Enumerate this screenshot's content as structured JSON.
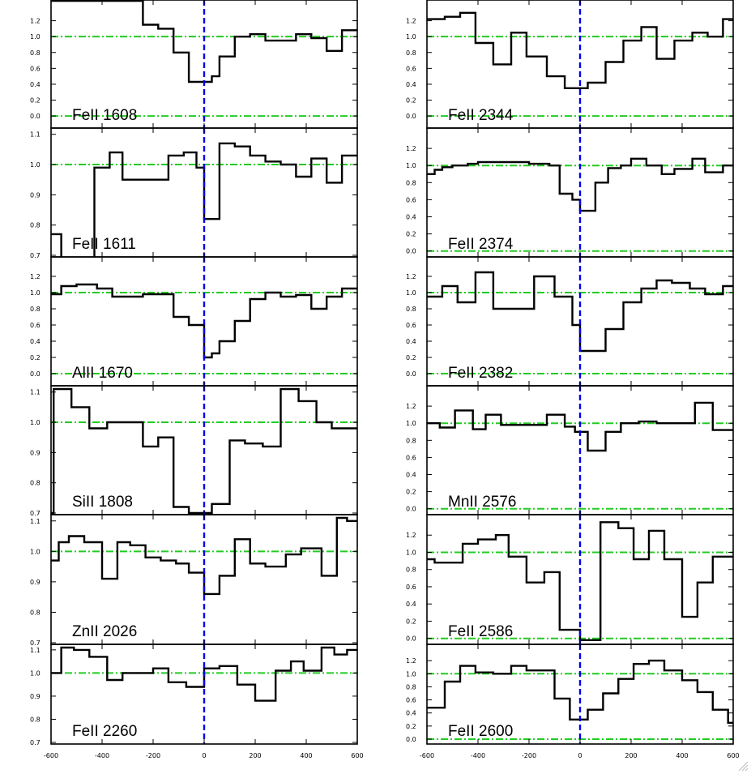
{
  "chart_data": {
    "type": "line",
    "layout": "two columns of six stacked step-histogram panels, shared x axis per column",
    "x_range": [
      -600,
      600
    ],
    "x_tick_labels": [
      "-600",
      "-400",
      "-200",
      "0",
      "200",
      "400",
      "600"
    ],
    "x_ticks": [
      -600,
      -400,
      -200,
      0,
      200,
      400,
      600
    ],
    "reference_lines": {
      "continuum_y": 1.0,
      "zero_y": 0.0,
      "continuum_style": "green dash-dot",
      "velocity_zero_x": 0,
      "velocity_zero_style": "blue dashed"
    },
    "colors": {
      "spectrum": "#000000",
      "continuum": "#22cc22",
      "velocity_zero": "#0000ee",
      "frame": "#000000"
    },
    "grid": false,
    "panels": [
      {
        "label": "FeII 1608",
        "column": "left",
        "row": 0,
        "ylim": [
          -0.05,
          1.4
        ],
        "ytick_labels": [
          "0.0",
          "0.2",
          "0.4",
          "0.6",
          "0.8",
          "1.0",
          "1.2"
        ],
        "yticks": [
          0,
          0.2,
          0.4,
          0.6,
          0.8,
          1.0,
          1.2
        ],
        "step_x": [
          -600,
          -540,
          -480,
          -420,
          -360,
          -300,
          -240,
          -180,
          -120,
          -60,
          0,
          30,
          60,
          120,
          180,
          240,
          300,
          360,
          420,
          480,
          540,
          600
        ],
        "values": [
          1.45,
          1.45,
          1.45,
          1.45,
          1.45,
          1.45,
          1.15,
          1.1,
          0.8,
          0.43,
          0.43,
          0.5,
          0.75,
          1.0,
          1.03,
          0.95,
          0.95,
          1.03,
          0.98,
          0.82,
          1.08
        ]
      },
      {
        "label": "FeII 1611",
        "column": "left",
        "row": 1,
        "ylim": [
          0.7,
          1.11
        ],
        "ytick_labels": [
          "0.7",
          "0.8",
          "0.9",
          "1.0",
          "1.1"
        ],
        "yticks": [
          0.7,
          0.8,
          0.9,
          1.0,
          1.1
        ],
        "step_x": [
          -600,
          -560,
          -500,
          -430,
          -370,
          -320,
          -270,
          -220,
          -140,
          -80,
          -30,
          0,
          60,
          120,
          180,
          240,
          300,
          360,
          420,
          480,
          540,
          580,
          600
        ],
        "values": [
          0.77,
          0.69,
          0.69,
          0.99,
          1.04,
          0.95,
          0.95,
          0.95,
          1.03,
          1.04,
          0.99,
          0.82,
          1.07,
          1.06,
          1.03,
          1.01,
          1.0,
          0.96,
          1.02,
          0.94,
          1.03,
          1.03
        ]
      },
      {
        "label": "AlII 1670",
        "column": "left",
        "row": 2,
        "ylim": [
          -0.05,
          1.4
        ],
        "ytick_labels": [
          "0.0",
          "0.2",
          "0.4",
          "0.6",
          "0.8",
          "1.0",
          "1.2"
        ],
        "yticks": [
          0,
          0.2,
          0.4,
          0.6,
          0.8,
          1.0,
          1.2
        ],
        "step_x": [
          -600,
          -560,
          -500,
          -420,
          -360,
          -300,
          -240,
          -180,
          -120,
          -60,
          0,
          30,
          60,
          120,
          180,
          240,
          300,
          360,
          420,
          480,
          540,
          600
        ],
        "values": [
          0.98,
          1.08,
          1.1,
          1.05,
          0.95,
          0.95,
          0.98,
          0.98,
          0.7,
          0.6,
          0.2,
          0.25,
          0.4,
          0.65,
          0.92,
          1.0,
          0.95,
          0.97,
          0.8,
          0.95,
          1.05
        ]
      },
      {
        "label": "SiII 1808",
        "column": "left",
        "row": 3,
        "ylim": [
          0.7,
          1.11
        ],
        "ytick_labels": [
          "0.7",
          "0.8",
          "0.9",
          "1.0",
          "1.1"
        ],
        "yticks": [
          0.7,
          0.8,
          0.9,
          1.0,
          1.1
        ],
        "step_x": [
          -600,
          -590,
          -520,
          -450,
          -380,
          -310,
          -240,
          -180,
          -120,
          -60,
          0,
          30,
          100,
          160,
          230,
          300,
          370,
          440,
          500,
          560,
          600
        ],
        "values": [
          0.7,
          1.11,
          1.05,
          0.98,
          1.0,
          1.0,
          0.92,
          0.95,
          0.72,
          0.7,
          0.7,
          0.73,
          0.94,
          0.93,
          0.92,
          1.11,
          1.07,
          1.0,
          0.98,
          0.98
        ]
      },
      {
        "label": "ZnII 2026",
        "column": "left",
        "row": 4,
        "ylim": [
          0.7,
          1.11
        ],
        "ytick_labels": [
          "0.7",
          "0.8",
          "0.9",
          "1.0",
          "1.1"
        ],
        "yticks": [
          0.7,
          0.8,
          0.9,
          1.0,
          1.1
        ],
        "step_x": [
          -600,
          -570,
          -530,
          -470,
          -400,
          -340,
          -290,
          -230,
          -170,
          -110,
          -60,
          0,
          60,
          120,
          180,
          240,
          320,
          380,
          460,
          520,
          560,
          600
        ],
        "values": [
          0.97,
          1.03,
          1.05,
          1.03,
          0.91,
          1.03,
          1.02,
          0.98,
          0.97,
          0.96,
          0.93,
          0.86,
          0.92,
          1.04,
          0.96,
          0.95,
          0.99,
          1.01,
          0.92,
          1.11,
          1.1
        ]
      },
      {
        "label": "FeII 2260",
        "column": "left",
        "row": 5,
        "ylim": [
          0.7,
          1.11
        ],
        "ytick_labels": [
          "0.7",
          "0.8",
          "0.9",
          "1.0",
          "1.1"
        ],
        "yticks": [
          0.7,
          0.8,
          0.9,
          1.0,
          1.1
        ],
        "step_x": [
          -600,
          -560,
          -510,
          -450,
          -380,
          -320,
          -250,
          -200,
          -140,
          -70,
          0,
          60,
          130,
          200,
          280,
          340,
          390,
          460,
          510,
          560,
          600
        ],
        "values": [
          1.0,
          1.11,
          1.1,
          1.07,
          0.97,
          1.0,
          1.0,
          1.02,
          0.96,
          0.94,
          1.02,
          1.03,
          0.95,
          0.88,
          1.01,
          1.05,
          1.01,
          1.11,
          1.08,
          1.1
        ]
      },
      {
        "label": "FeII 2344",
        "column": "right",
        "row": 0,
        "ylim": [
          -0.05,
          1.4
        ],
        "ytick_labels": [
          "0.0",
          "0.2",
          "0.4",
          "0.6",
          "0.8",
          "1.0",
          "1.2"
        ],
        "yticks": [
          0,
          0.2,
          0.4,
          0.6,
          0.8,
          1.0,
          1.2
        ],
        "step_x": [
          -600,
          -530,
          -470,
          -410,
          -340,
          -270,
          -210,
          -130,
          -60,
          0,
          30,
          100,
          170,
          240,
          300,
          370,
          440,
          500,
          560,
          600
        ],
        "values": [
          1.22,
          1.25,
          1.3,
          0.92,
          0.65,
          1.05,
          0.75,
          0.5,
          0.35,
          0.35,
          0.42,
          0.68,
          0.95,
          1.12,
          0.72,
          0.95,
          1.05,
          1.0,
          1.22
        ]
      },
      {
        "label": "FeII 2374",
        "column": "right",
        "row": 1,
        "ylim": [
          -0.05,
          1.4
        ],
        "ytick_labels": [
          "0.0",
          "0.2",
          "0.4",
          "0.6",
          "0.8",
          "1.0",
          "1.2"
        ],
        "yticks": [
          0,
          0.2,
          0.4,
          0.6,
          0.8,
          1.0,
          1.2
        ],
        "step_x": [
          -600,
          -570,
          -540,
          -500,
          -440,
          -400,
          -300,
          -200,
          -120,
          -80,
          -30,
          0,
          60,
          110,
          160,
          200,
          260,
          320,
          370,
          440,
          490,
          560,
          600
        ],
        "values": [
          0.9,
          0.95,
          0.98,
          1.0,
          1.02,
          1.04,
          1.04,
          1.02,
          1.0,
          0.67,
          0.6,
          0.47,
          0.8,
          0.97,
          1.0,
          1.08,
          1.0,
          0.9,
          0.96,
          1.08,
          0.92,
          1.0
        ]
      },
      {
        "label": "FeII 2382",
        "column": "right",
        "row": 2,
        "ylim": [
          -0.05,
          1.4
        ],
        "ytick_labels": [
          "0.0",
          "0.2",
          "0.4",
          "0.6",
          "0.8",
          "1.0",
          "1.2"
        ],
        "yticks": [
          0,
          0.2,
          0.4,
          0.6,
          0.8,
          1.0,
          1.2
        ],
        "step_x": [
          -600,
          -540,
          -480,
          -410,
          -340,
          -250,
          -180,
          -100,
          -30,
          0,
          30,
          100,
          170,
          240,
          300,
          360,
          430,
          490,
          560,
          600
        ],
        "values": [
          0.95,
          1.08,
          0.88,
          1.25,
          0.8,
          0.8,
          1.2,
          0.95,
          0.6,
          0.28,
          0.28,
          0.55,
          0.88,
          1.05,
          1.15,
          1.12,
          1.05,
          0.98,
          1.08
        ]
      },
      {
        "label": "MnII 2576",
        "column": "right",
        "row": 3,
        "ylim": [
          -0.05,
          1.4
        ],
        "ytick_labels": [
          "0.0",
          "0.2",
          "0.4",
          "0.6",
          "0.8",
          "1.0",
          "1.2"
        ],
        "yticks": [
          0,
          0.2,
          0.4,
          0.6,
          0.8,
          1.0,
          1.2
        ],
        "step_x": [
          -600,
          -550,
          -490,
          -420,
          -370,
          -310,
          -250,
          -190,
          -130,
          -60,
          -20,
          30,
          100,
          160,
          230,
          300,
          380,
          450,
          520,
          580,
          600
        ],
        "values": [
          1.0,
          0.95,
          1.15,
          0.93,
          1.1,
          0.98,
          0.98,
          0.98,
          1.1,
          0.96,
          0.9,
          0.68,
          0.9,
          1.0,
          1.02,
          1.0,
          1.0,
          1.24,
          0.92,
          0.92
        ]
      },
      {
        "label": "FeII 2586",
        "column": "right",
        "row": 4,
        "ylim": [
          -0.05,
          1.4
        ],
        "ytick_labels": [
          "0.0",
          "0.2",
          "0.4",
          "0.6",
          "0.8",
          "1.0",
          "1.2"
        ],
        "yticks": [
          0,
          0.2,
          0.4,
          0.6,
          0.8,
          1.0,
          1.2
        ],
        "step_x": [
          -600,
          -570,
          -520,
          -460,
          -400,
          -330,
          -280,
          -210,
          -140,
          -80,
          -60,
          0,
          40,
          80,
          150,
          210,
          270,
          330,
          400,
          460,
          520,
          580,
          600
        ],
        "values": [
          0.92,
          0.88,
          0.88,
          1.1,
          1.15,
          1.2,
          0.95,
          0.65,
          0.77,
          0.1,
          0.1,
          -0.02,
          -0.02,
          1.35,
          1.28,
          0.92,
          1.25,
          0.92,
          0.25,
          0.65,
          0.95,
          0.95
        ]
      },
      {
        "label": "FeII 2600",
        "column": "right",
        "row": 5,
        "ylim": [
          -0.05,
          1.4
        ],
        "ytick_labels": [
          "0.0",
          "0.2",
          "0.4",
          "0.6",
          "0.8",
          "1.0",
          "1.2"
        ],
        "yticks": [
          0,
          0.2,
          0.4,
          0.6,
          0.8,
          1.0,
          1.2
        ],
        "step_x": [
          -600,
          -530,
          -470,
          -410,
          -340,
          -270,
          -210,
          -150,
          -100,
          -40,
          0,
          30,
          90,
          150,
          210,
          270,
          330,
          400,
          460,
          520,
          580,
          600
        ],
        "values": [
          0.48,
          0.88,
          1.12,
          1.02,
          1.0,
          1.12,
          1.05,
          1.05,
          0.62,
          0.3,
          0.3,
          0.45,
          0.7,
          0.92,
          1.15,
          1.2,
          1.05,
          0.9,
          0.72,
          0.45,
          0.25
        ]
      }
    ]
  }
}
